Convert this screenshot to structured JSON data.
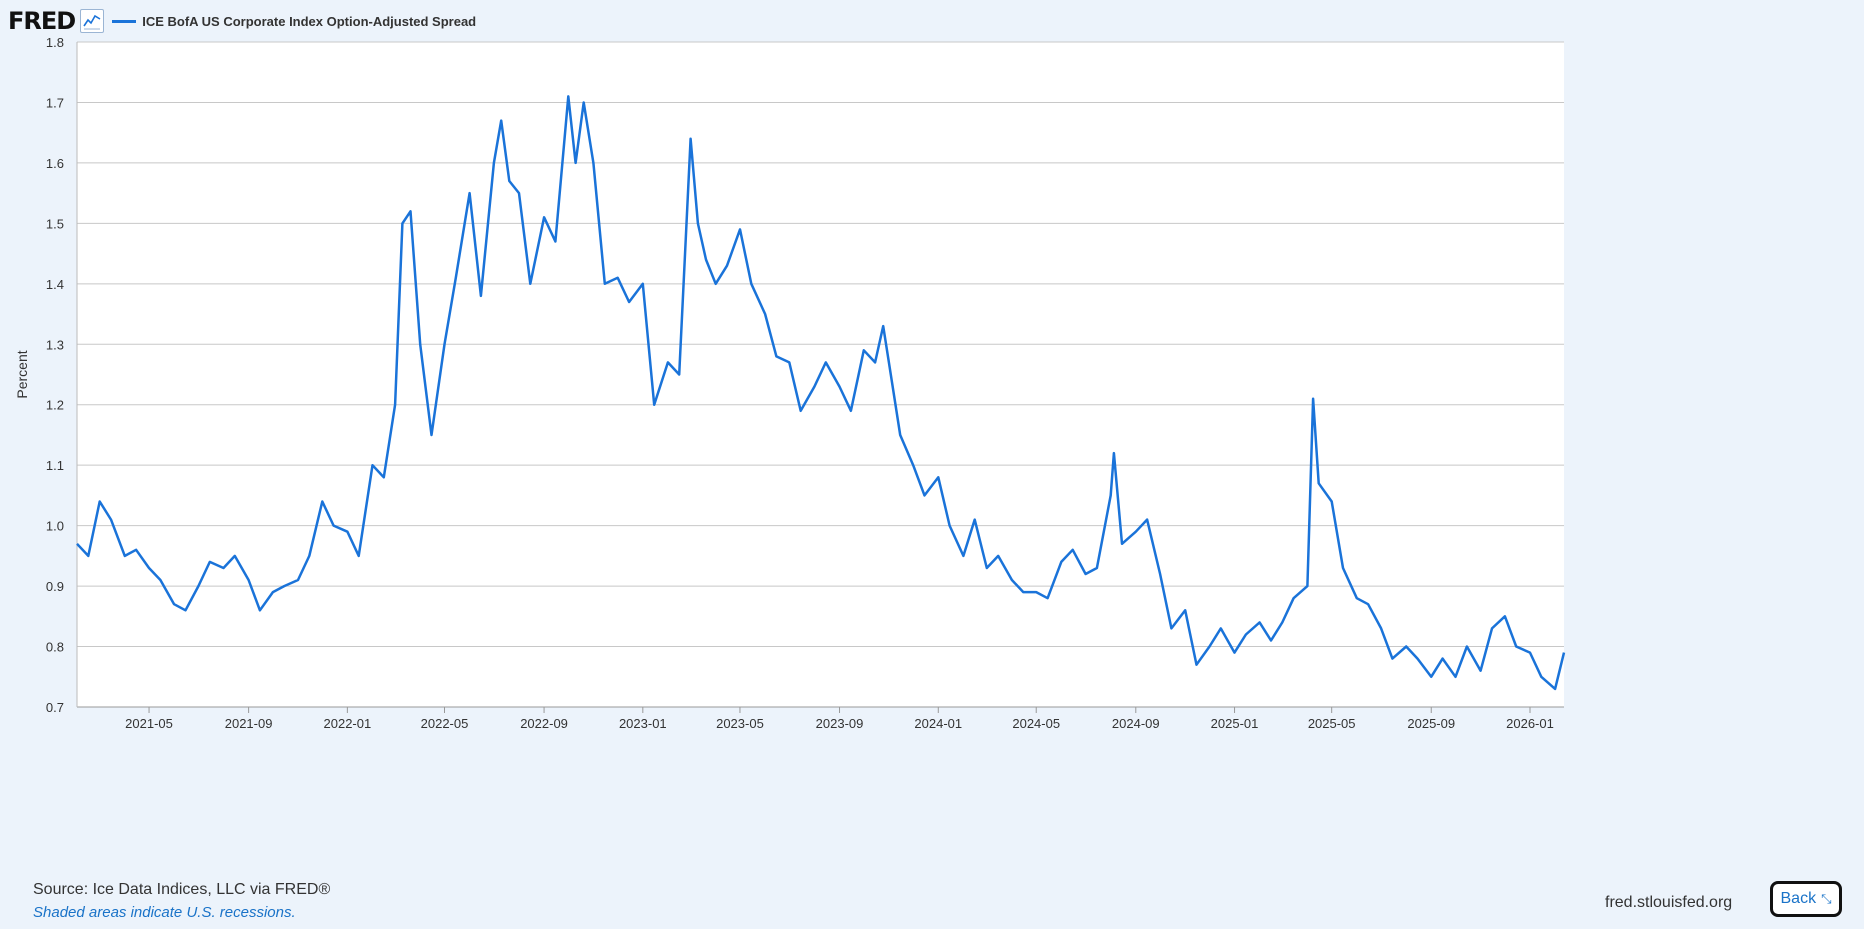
{
  "header": {
    "logo": "FRED",
    "logo_icon": "line-chart-icon",
    "series_label": "ICE BofA US Corporate Index Option-Adjusted Spread"
  },
  "footer": {
    "source": "Source: Ice Data Indices, LLC via FRED®",
    "note": "Shaded areas indicate U.S. recessions.",
    "site": "fred.stlouisfed.org",
    "back_label": "Back",
    "back_icon": "shrink-icon"
  },
  "colors": {
    "line": "#1a73d9",
    "grid": "#c8c8c8",
    "plot_bg": "#ffffff",
    "page_bg": "#ecf3fb"
  },
  "chart_data": {
    "type": "line",
    "ylabel": "Percent",
    "ylim": [
      0.7,
      1.8
    ],
    "yticks": [
      0.7,
      0.8,
      0.9,
      1.0,
      1.1,
      1.2,
      1.3,
      1.4,
      1.5,
      1.6,
      1.7,
      1.8
    ],
    "ytick_labels": [
      "0.7",
      "0.8",
      "0.9",
      "1.0",
      "1.1",
      "1.2",
      "1.3",
      "1.4",
      "1.5",
      "1.6",
      "1.7",
      "1.8"
    ],
    "xlim": [
      "2021-02-01",
      "2026-02-12"
    ],
    "xticks": [
      "2021-05",
      "2021-09",
      "2022-01",
      "2022-05",
      "2022-09",
      "2023-01",
      "2023-05",
      "2023-09",
      "2024-01",
      "2024-05",
      "2024-09",
      "2025-01",
      "2025-05",
      "2025-09",
      "2026-01"
    ],
    "grid": true,
    "legend_position": "top-left",
    "series": [
      {
        "name": "ICE BofA US Corporate Index Option-Adjusted Spread",
        "x": [
          "2021-02-01",
          "2021-02-15",
          "2021-03-01",
          "2021-03-15",
          "2021-04-01",
          "2021-04-15",
          "2021-05-01",
          "2021-05-15",
          "2021-06-01",
          "2021-06-15",
          "2021-07-01",
          "2021-07-15",
          "2021-08-01",
          "2021-08-15",
          "2021-09-01",
          "2021-09-15",
          "2021-10-01",
          "2021-10-15",
          "2021-11-01",
          "2021-11-15",
          "2021-12-01",
          "2021-12-15",
          "2022-01-01",
          "2022-01-15",
          "2022-02-01",
          "2022-02-15",
          "2022-03-01",
          "2022-03-10",
          "2022-03-20",
          "2022-04-01",
          "2022-04-15",
          "2022-05-01",
          "2022-05-15",
          "2022-06-01",
          "2022-06-15",
          "2022-07-01",
          "2022-07-10",
          "2022-07-20",
          "2022-08-01",
          "2022-08-15",
          "2022-09-01",
          "2022-09-15",
          "2022-10-01",
          "2022-10-10",
          "2022-10-20",
          "2022-11-01",
          "2022-11-15",
          "2022-12-01",
          "2022-12-15",
          "2023-01-01",
          "2023-01-15",
          "2023-02-01",
          "2023-02-15",
          "2023-03-01",
          "2023-03-10",
          "2023-03-20",
          "2023-04-01",
          "2023-04-15",
          "2023-05-01",
          "2023-05-15",
          "2023-06-01",
          "2023-06-15",
          "2023-07-01",
          "2023-07-15",
          "2023-08-01",
          "2023-08-15",
          "2023-09-01",
          "2023-09-15",
          "2023-10-01",
          "2023-10-15",
          "2023-10-25",
          "2023-11-01",
          "2023-11-15",
          "2023-12-01",
          "2023-12-15",
          "2024-01-01",
          "2024-01-15",
          "2024-02-01",
          "2024-02-15",
          "2024-03-01",
          "2024-03-15",
          "2024-04-01",
          "2024-04-15",
          "2024-05-01",
          "2024-05-15",
          "2024-06-01",
          "2024-06-15",
          "2024-07-01",
          "2024-07-15",
          "2024-08-01",
          "2024-08-05",
          "2024-08-15",
          "2024-09-01",
          "2024-09-15",
          "2024-10-01",
          "2024-10-15",
          "2024-11-01",
          "2024-11-15",
          "2024-12-01",
          "2024-12-15",
          "2025-01-01",
          "2025-01-15",
          "2025-02-01",
          "2025-02-15",
          "2025-03-01",
          "2025-03-15",
          "2025-04-01",
          "2025-04-08",
          "2025-04-15",
          "2025-05-01",
          "2025-05-15",
          "2025-06-01",
          "2025-06-15",
          "2025-07-01",
          "2025-07-15",
          "2025-08-01",
          "2025-08-15",
          "2025-09-01",
          "2025-09-15",
          "2025-10-01",
          "2025-10-15",
          "2025-11-01",
          "2025-11-15",
          "2025-12-01",
          "2025-12-15",
          "2026-01-01",
          "2026-01-15",
          "2026-02-01",
          "2026-02-12"
        ],
        "y": [
          0.97,
          0.95,
          1.04,
          1.01,
          0.95,
          0.96,
          0.93,
          0.91,
          0.87,
          0.86,
          0.9,
          0.94,
          0.93,
          0.95,
          0.91,
          0.86,
          0.89,
          0.9,
          0.91,
          0.95,
          1.04,
          1.0,
          0.99,
          0.95,
          1.1,
          1.08,
          1.2,
          1.5,
          1.52,
          1.3,
          1.15,
          1.3,
          1.41,
          1.55,
          1.38,
          1.6,
          1.67,
          1.57,
          1.55,
          1.4,
          1.51,
          1.47,
          1.71,
          1.6,
          1.7,
          1.6,
          1.4,
          1.41,
          1.37,
          1.4,
          1.2,
          1.27,
          1.25,
          1.64,
          1.5,
          1.44,
          1.4,
          1.43,
          1.49,
          1.4,
          1.35,
          1.28,
          1.27,
          1.19,
          1.23,
          1.27,
          1.23,
          1.19,
          1.29,
          1.27,
          1.33,
          1.27,
          1.15,
          1.1,
          1.05,
          1.08,
          1.0,
          0.95,
          1.01,
          0.93,
          0.95,
          0.91,
          0.89,
          0.89,
          0.88,
          0.94,
          0.96,
          0.92,
          0.93,
          1.05,
          1.12,
          0.97,
          0.99,
          1.01,
          0.92,
          0.83,
          0.86,
          0.77,
          0.8,
          0.83,
          0.79,
          0.82,
          0.84,
          0.81,
          0.84,
          0.88,
          0.9,
          1.21,
          1.07,
          1.04,
          0.93,
          0.88,
          0.87,
          0.83,
          0.78,
          0.8,
          0.78,
          0.75,
          0.78,
          0.75,
          0.8,
          0.76,
          0.83,
          0.85,
          0.8,
          0.79,
          0.75,
          0.73,
          0.79
        ]
      }
    ]
  }
}
